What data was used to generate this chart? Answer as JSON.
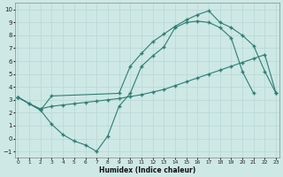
{
  "xlabel": "Humidex (Indice chaleur)",
  "bg_color": "#cde8e5",
  "line_color": "#2e7d72",
  "grid_color": "#b8d8d5",
  "xlim": [
    0,
    23
  ],
  "ylim": [
    -1.5,
    10.5
  ],
  "line1_x": [
    0,
    1,
    2,
    3,
    4,
    5,
    6,
    7,
    8,
    9,
    10,
    11,
    12,
    13,
    14,
    15,
    16,
    17,
    18,
    19,
    20,
    21
  ],
  "line1_y": [
    3.2,
    2.7,
    2.2,
    1.1,
    0.3,
    -0.2,
    -0.5,
    -1.0,
    0.2,
    2.5,
    3.5,
    5.6,
    6.4,
    7.1,
    8.6,
    9.0,
    9.1,
    9.0,
    8.6,
    7.8,
    5.2,
    3.5
  ],
  "line2_x": [
    0,
    1,
    2,
    3,
    4,
    5,
    6,
    7,
    8,
    9,
    10,
    11,
    12,
    13,
    14,
    15,
    16,
    17,
    18,
    19,
    20,
    21,
    22,
    23
  ],
  "line2_y": [
    3.2,
    2.7,
    2.3,
    2.5,
    2.6,
    2.7,
    2.8,
    2.9,
    3.0,
    3.1,
    3.25,
    3.4,
    3.6,
    3.8,
    4.1,
    4.4,
    4.7,
    5.0,
    5.3,
    5.6,
    5.9,
    6.2,
    6.5,
    3.5
  ],
  "line3_x": [
    0,
    2,
    3,
    9,
    10,
    11,
    12,
    13,
    14,
    15,
    16,
    17,
    18,
    19,
    20,
    21,
    22,
    23
  ],
  "line3_y": [
    3.2,
    2.2,
    3.3,
    3.5,
    5.6,
    6.6,
    7.5,
    8.1,
    8.7,
    9.2,
    9.6,
    9.9,
    9.0,
    8.6,
    8.0,
    7.2,
    5.2,
    3.5
  ]
}
